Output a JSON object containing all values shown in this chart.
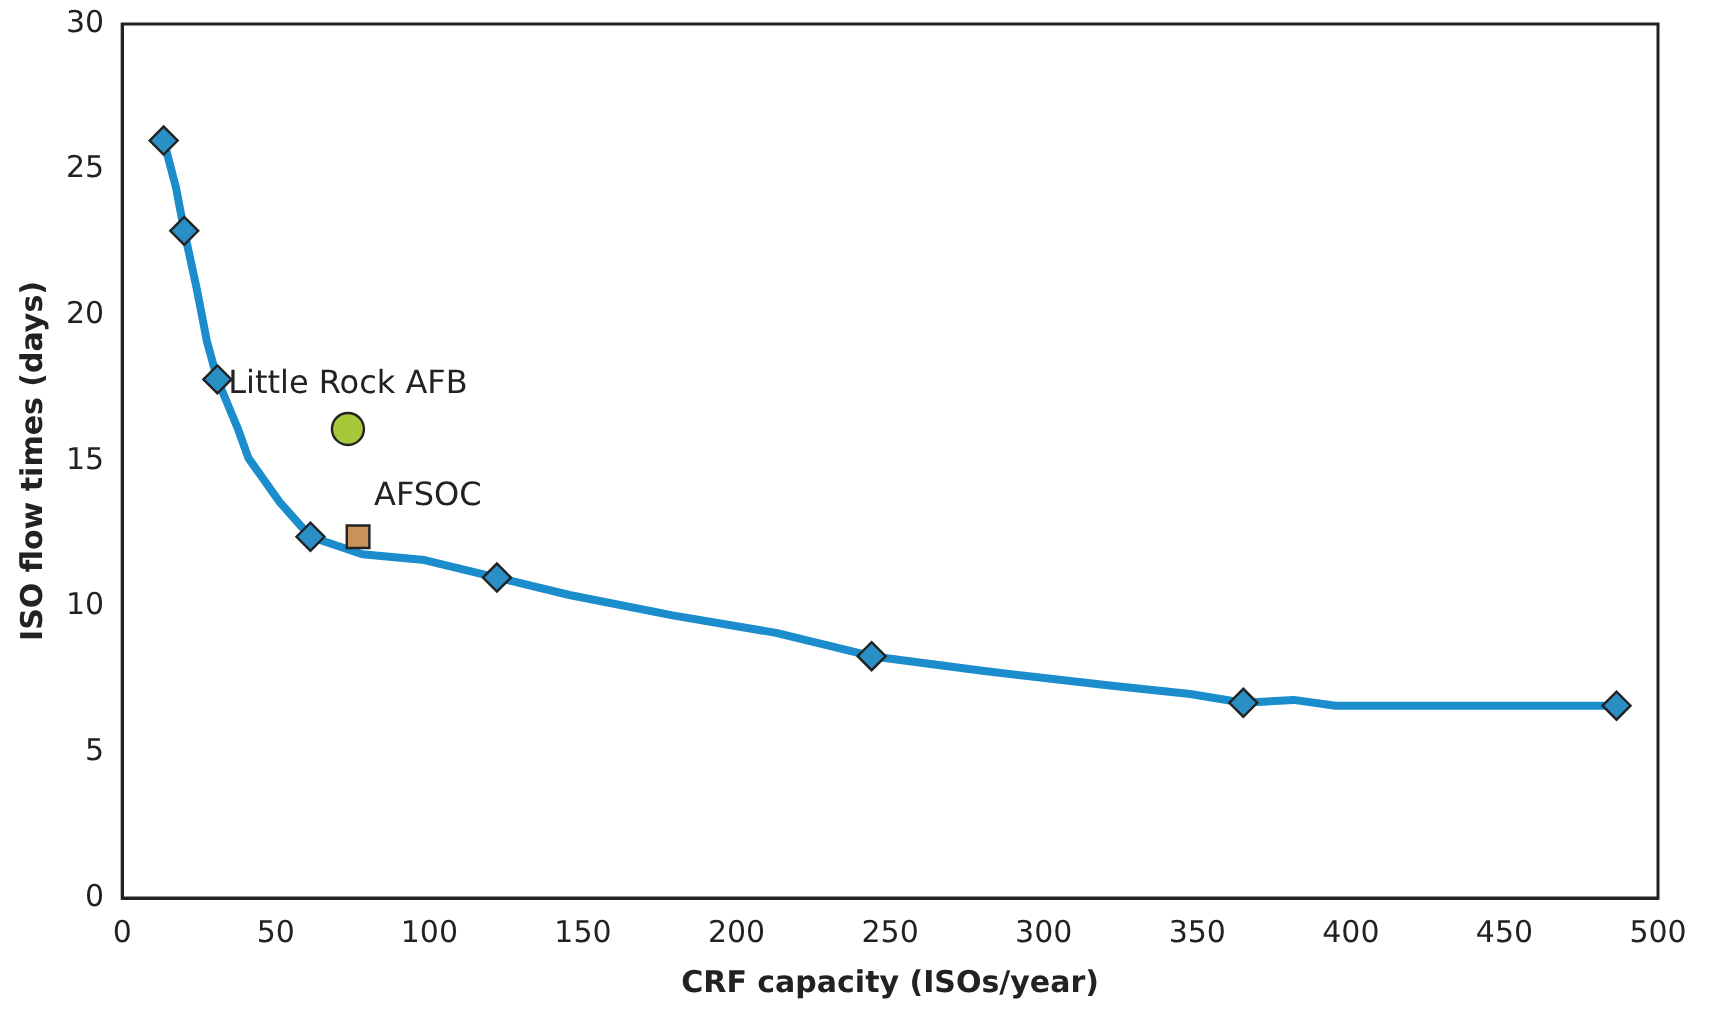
{
  "chart_data": {
    "type": "line",
    "xlabel": "CRF capacity (ISOs/year)",
    "ylabel": "ISO flow times (days)",
    "xlim": [
      0,
      500
    ],
    "ylim": [
      0,
      30
    ],
    "xticks": [
      0,
      50,
      100,
      150,
      200,
      250,
      300,
      350,
      400,
      450,
      500
    ],
    "yticks": [
      0,
      5,
      10,
      15,
      20,
      25,
      30
    ],
    "grid": false,
    "legend": false,
    "series": [
      {
        "type": "line",
        "color": "#1b8ccc",
        "marker": "none",
        "x": [
          13.5,
          17.5,
          20.2,
          24.3,
          27.6,
          31,
          37.7,
          41.1,
          51.2,
          61.3,
          78.2,
          98.4,
          122,
          145.6,
          179.2,
          212.9,
          244,
          280,
          320.8,
          347.7,
          365,
          381.4,
          395,
          486.5
        ],
        "values": [
          26.0,
          24.4,
          22.9,
          20.9,
          19.1,
          17.8,
          16.1,
          15.1,
          13.6,
          12.4,
          11.8,
          11.6,
          11.0,
          10.4,
          9.7,
          9.1,
          8.3,
          7.8,
          7.3,
          7.0,
          6.7,
          6.8,
          6.6,
          6.6
        ]
      },
      {
        "type": "scatter",
        "color": "#2a8fc4",
        "marker": "diamond",
        "x": [
          13.5,
          20.2,
          31,
          61.3,
          122,
          244,
          365,
          486.5
        ],
        "values": [
          26.0,
          22.9,
          17.8,
          12.4,
          11.0,
          8.3,
          6.7,
          6.6
        ]
      },
      {
        "type": "scatter",
        "name": "Little Rock AFB",
        "color": "#a8c83c",
        "marker": "circle",
        "x": [
          73.5
        ],
        "values": [
          16.1
        ]
      },
      {
        "type": "scatter",
        "name": "AFSOC",
        "color": "#c8935a",
        "marker": "square",
        "x": [
          76.8
        ],
        "values": [
          12.4
        ]
      }
    ]
  }
}
